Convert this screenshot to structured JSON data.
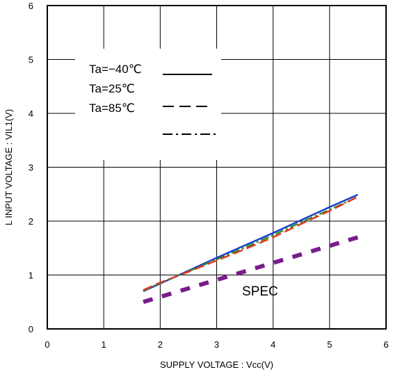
{
  "chart_data": {
    "type": "line",
    "xlabel": "SUPPLY VOLTAGE : Vcc(V)",
    "ylabel": "L INPUT VOLTAGE : VIL1(V)",
    "xlim": [
      0,
      6
    ],
    "ylim": [
      0,
      6
    ],
    "x_ticks": [
      "0",
      "1",
      "2",
      "3",
      "4",
      "5",
      "6"
    ],
    "y_ticks": [
      "0",
      "1",
      "2",
      "3",
      "4",
      "5",
      "6"
    ],
    "grid": true,
    "legend": {
      "placement": "top-left",
      "entries": [
        "Ta=−40℃",
        "Ta=25℃",
        "Ta=85℃",
        ""
      ]
    },
    "series": [
      {
        "color": "#1a3fcc",
        "style": "solid",
        "x": [
          1.7,
          2.0,
          2.5,
          3.0,
          3.5,
          4.0,
          4.5,
          5.0,
          5.5
        ],
        "y": [
          0.7,
          0.84,
          1.08,
          1.32,
          1.55,
          1.78,
          2.02,
          2.26,
          2.49
        ]
      },
      {
        "color": "#2e8b2e",
        "style": "dashdot",
        "x": [
          1.7,
          2.0,
          2.5,
          3.0,
          3.5,
          4.0,
          4.5,
          5.0,
          5.5
        ],
        "y": [
          0.71,
          0.85,
          1.07,
          1.29,
          1.51,
          1.74,
          1.98,
          2.21,
          2.45
        ]
      },
      {
        "color": "#e03a1e",
        "style": "dash",
        "x": [
          1.7,
          2.0,
          2.5,
          3.0,
          3.5,
          4.0,
          4.5,
          5.0,
          5.5
        ],
        "y": [
          0.72,
          0.86,
          1.06,
          1.27,
          1.48,
          1.7,
          1.95,
          2.19,
          2.45
        ]
      },
      {
        "color": "#7a1c8c",
        "style": "thick-dash",
        "x": [
          1.7,
          5.5
        ],
        "y": [
          0.5,
          1.7
        ]
      }
    ],
    "annotations": [
      {
        "text": "SPEC"
      }
    ]
  }
}
